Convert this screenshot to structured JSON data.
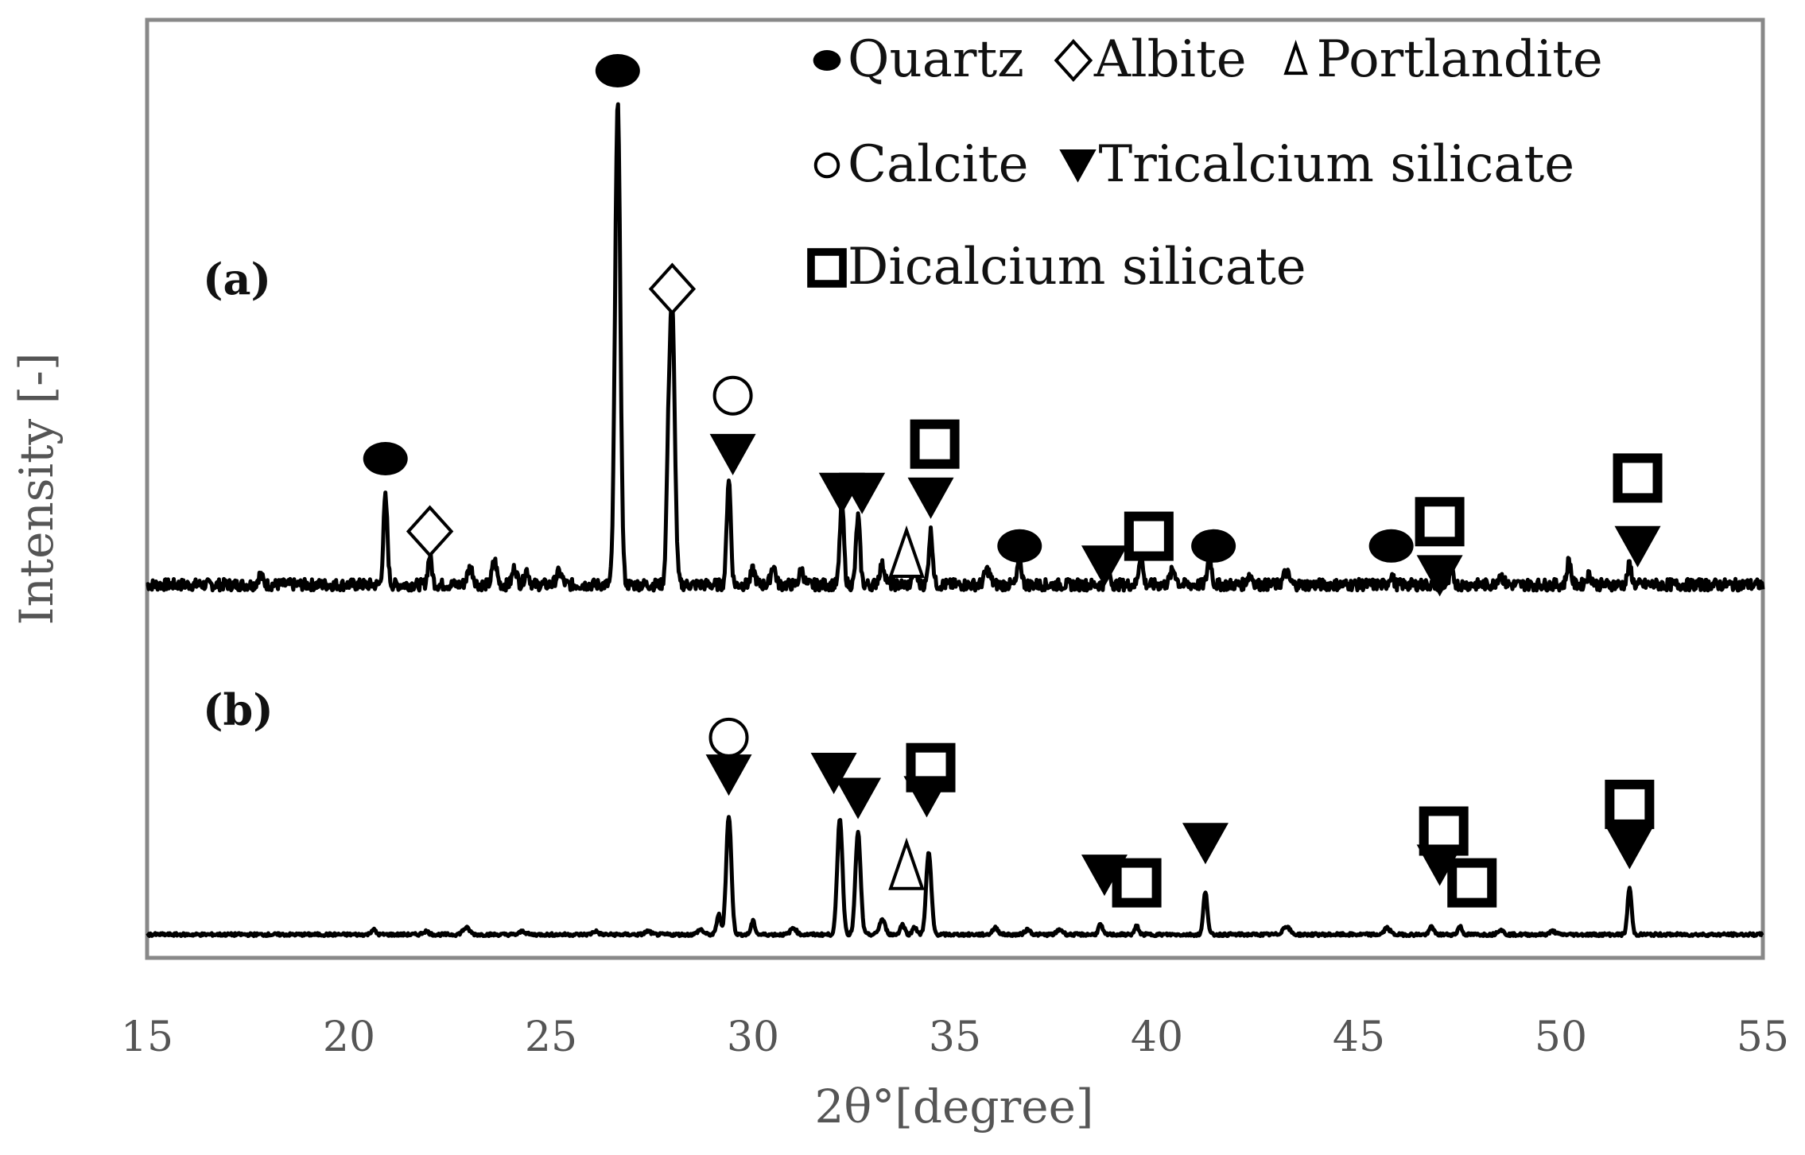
{
  "chart_data": {
    "type": "line",
    "xlabel": "2θ°[degree]",
    "ylabel": "Intensity [-]",
    "xlim": [
      15,
      55
    ],
    "x_ticks": [
      "15",
      "20",
      "25",
      "30",
      "35",
      "40",
      "45",
      "50",
      "55"
    ],
    "grid": false,
    "legend": {
      "placement": "top-right",
      "lines": [
        [
          {
            "marker": "filled-circle",
            "label": "Quartz"
          },
          {
            "marker": "open-diamond",
            "label": "Albite"
          },
          {
            "marker": "open-triangle",
            "label": "Portlandite"
          }
        ],
        [
          {
            "marker": "open-circle",
            "label": "Calcite"
          },
          {
            "marker": "filled-triangle-down",
            "label": "Tricalcium silicate"
          }
        ],
        [
          {
            "marker": "open-square",
            "label": "Dicalcium silicate"
          }
        ]
      ]
    },
    "series": [
      {
        "label": "(a)",
        "baseline": 0.04,
        "noise_peaks": [
          [
            17.8,
            0.02,
            0.08
          ],
          [
            23.0,
            0.035,
            0.1
          ],
          [
            23.6,
            0.05,
            0.08
          ],
          [
            24.1,
            0.035,
            0.08
          ],
          [
            24.4,
            0.03,
            0.08
          ],
          [
            25.2,
            0.025,
            0.1
          ],
          [
            30.0,
            0.03,
            0.08
          ],
          [
            30.5,
            0.04,
            0.08
          ],
          [
            31.2,
            0.03,
            0.08
          ],
          [
            33.2,
            0.04,
            0.1
          ],
          [
            35.8,
            0.03,
            0.1
          ],
          [
            40.4,
            0.03,
            0.1
          ],
          [
            42.3,
            0.02,
            0.1
          ],
          [
            43.2,
            0.025,
            0.1
          ],
          [
            48.5,
            0.02,
            0.1
          ],
          [
            50.7,
            0.02,
            0.1
          ]
        ],
        "peaks": [
          {
            "two_theta": 20.9,
            "intensity": 0.18
          },
          {
            "two_theta": 22.0,
            "intensity": 0.06
          },
          {
            "two_theta": 26.65,
            "intensity": 1.0
          },
          {
            "two_theta": 27.9,
            "intensity": 0.19
          },
          {
            "two_theta": 28.0,
            "intensity": 0.56
          },
          {
            "two_theta": 29.4,
            "intensity": 0.22
          },
          {
            "two_theta": 32.2,
            "intensity": 0.17
          },
          {
            "two_theta": 32.6,
            "intensity": 0.14
          },
          {
            "two_theta": 34.0,
            "intensity": 0.04
          },
          {
            "two_theta": 34.4,
            "intensity": 0.11
          },
          {
            "two_theta": 36.6,
            "intensity": 0.05
          },
          {
            "two_theta": 38.8,
            "intensity": 0.03
          },
          {
            "two_theta": 39.6,
            "intensity": 0.06
          },
          {
            "two_theta": 41.3,
            "intensity": 0.06
          },
          {
            "two_theta": 45.8,
            "intensity": 0.02
          },
          {
            "two_theta": 47.3,
            "intensity": 0.025
          },
          {
            "two_theta": 50.2,
            "intensity": 0.05
          },
          {
            "two_theta": 51.7,
            "intensity": 0.04
          }
        ],
        "phase_markers": [
          {
            "marker": "filled-circle",
            "two_theta": 20.9,
            "level": 0.3
          },
          {
            "marker": "open-diamond",
            "two_theta": 22.0,
            "level": 0.15
          },
          {
            "marker": "filled-circle",
            "two_theta": 26.65,
            "level": 1.1
          },
          {
            "marker": "open-diamond",
            "two_theta": 28.0,
            "level": 0.65
          },
          {
            "marker": "open-circle",
            "two_theta": 29.5,
            "level": 0.43
          },
          {
            "marker": "filled-triangle-down",
            "two_theta": 29.5,
            "level": 0.31
          },
          {
            "marker": "filled-triangle-down",
            "two_theta": 32.2,
            "level": 0.23
          },
          {
            "marker": "filled-triangle-down",
            "two_theta": 32.7,
            "level": 0.23
          },
          {
            "marker": "open-triangle",
            "two_theta": 33.8,
            "level": 0.1
          },
          {
            "marker": "open-square",
            "two_theta": 34.5,
            "level": 0.33
          },
          {
            "marker": "filled-triangle-down",
            "two_theta": 34.4,
            "level": 0.22
          },
          {
            "marker": "filled-circle",
            "two_theta": 36.6,
            "level": 0.12
          },
          {
            "marker": "filled-triangle-down",
            "two_theta": 38.7,
            "level": 0.08
          },
          {
            "marker": "open-square",
            "two_theta": 39.8,
            "level": 0.14
          },
          {
            "marker": "filled-circle",
            "two_theta": 41.4,
            "level": 0.12
          },
          {
            "marker": "filled-circle",
            "two_theta": 45.8,
            "level": 0.12
          },
          {
            "marker": "open-square",
            "two_theta": 47.0,
            "level": 0.17
          },
          {
            "marker": "filled-triangle-down",
            "two_theta": 47.0,
            "level": 0.06
          },
          {
            "marker": "open-square",
            "two_theta": 51.9,
            "level": 0.26
          },
          {
            "marker": "filled-triangle-down",
            "two_theta": 51.9,
            "level": 0.12
          }
        ]
      },
      {
        "label": "(b)",
        "baseline": 0.03,
        "noise_peaks": [
          [
            20.6,
            0.03,
            0.08
          ],
          [
            21.9,
            0.02,
            0.1
          ],
          [
            22.9,
            0.04,
            0.12
          ],
          [
            24.3,
            0.02,
            0.1
          ],
          [
            26.1,
            0.02,
            0.1
          ],
          [
            27.4,
            0.02,
            0.1
          ],
          [
            28.7,
            0.03,
            0.1
          ],
          [
            31.0,
            0.04,
            0.1
          ],
          [
            33.2,
            0.09,
            0.1
          ],
          [
            33.7,
            0.06,
            0.08
          ],
          [
            36.0,
            0.04,
            0.1
          ],
          [
            36.8,
            0.03,
            0.1
          ],
          [
            37.6,
            0.03,
            0.1
          ],
          [
            43.2,
            0.05,
            0.12
          ],
          [
            45.7,
            0.04,
            0.1
          ],
          [
            48.5,
            0.03,
            0.1
          ],
          [
            49.8,
            0.02,
            0.1
          ]
        ],
        "peaks": [
          {
            "two_theta": 29.15,
            "intensity": 0.12
          },
          {
            "two_theta": 29.4,
            "intensity": 0.71
          },
          {
            "two_theta": 30.0,
            "intensity": 0.08
          },
          {
            "two_theta": 32.15,
            "intensity": 0.7
          },
          {
            "two_theta": 32.6,
            "intensity": 0.61
          },
          {
            "two_theta": 34.0,
            "intensity": 0.05
          },
          {
            "two_theta": 34.35,
            "intensity": 0.49
          },
          {
            "two_theta": 38.6,
            "intensity": 0.06
          },
          {
            "two_theta": 39.5,
            "intensity": 0.05
          },
          {
            "two_theta": 41.2,
            "intensity": 0.26
          },
          {
            "two_theta": 46.8,
            "intensity": 0.05
          },
          {
            "two_theta": 47.5,
            "intensity": 0.05
          },
          {
            "two_theta": 51.7,
            "intensity": 0.28
          }
        ],
        "phase_markers": [
          {
            "marker": "open-circle",
            "two_theta": 29.4,
            "level": 1.21
          },
          {
            "marker": "filled-triangle-down",
            "two_theta": 29.4,
            "level": 0.99
          },
          {
            "marker": "filled-triangle-down",
            "two_theta": 32.0,
            "level": 1.0
          },
          {
            "marker": "filled-triangle-down",
            "two_theta": 32.6,
            "level": 0.85
          },
          {
            "marker": "open-square",
            "two_theta": 34.4,
            "level": 1.03
          },
          {
            "marker": "filled-triangle-down",
            "two_theta": 34.3,
            "level": 0.86
          },
          {
            "marker": "open-triangle",
            "two_theta": 33.8,
            "level": 0.43
          },
          {
            "marker": "filled-triangle-down",
            "two_theta": 38.7,
            "level": 0.39
          },
          {
            "marker": "open-square",
            "two_theta": 39.5,
            "level": 0.34
          },
          {
            "marker": "filled-triangle-down",
            "two_theta": 41.2,
            "level": 0.58
          },
          {
            "marker": "open-square",
            "two_theta": 47.1,
            "level": 0.65
          },
          {
            "marker": "filled-triangle-down",
            "two_theta": 47.0,
            "level": 0.45
          },
          {
            "marker": "open-square",
            "two_theta": 47.8,
            "level": 0.34
          },
          {
            "marker": "open-square",
            "two_theta": 51.7,
            "level": 0.81
          },
          {
            "marker": "filled-triangle-down",
            "two_theta": 51.7,
            "level": 0.55
          }
        ]
      }
    ]
  }
}
